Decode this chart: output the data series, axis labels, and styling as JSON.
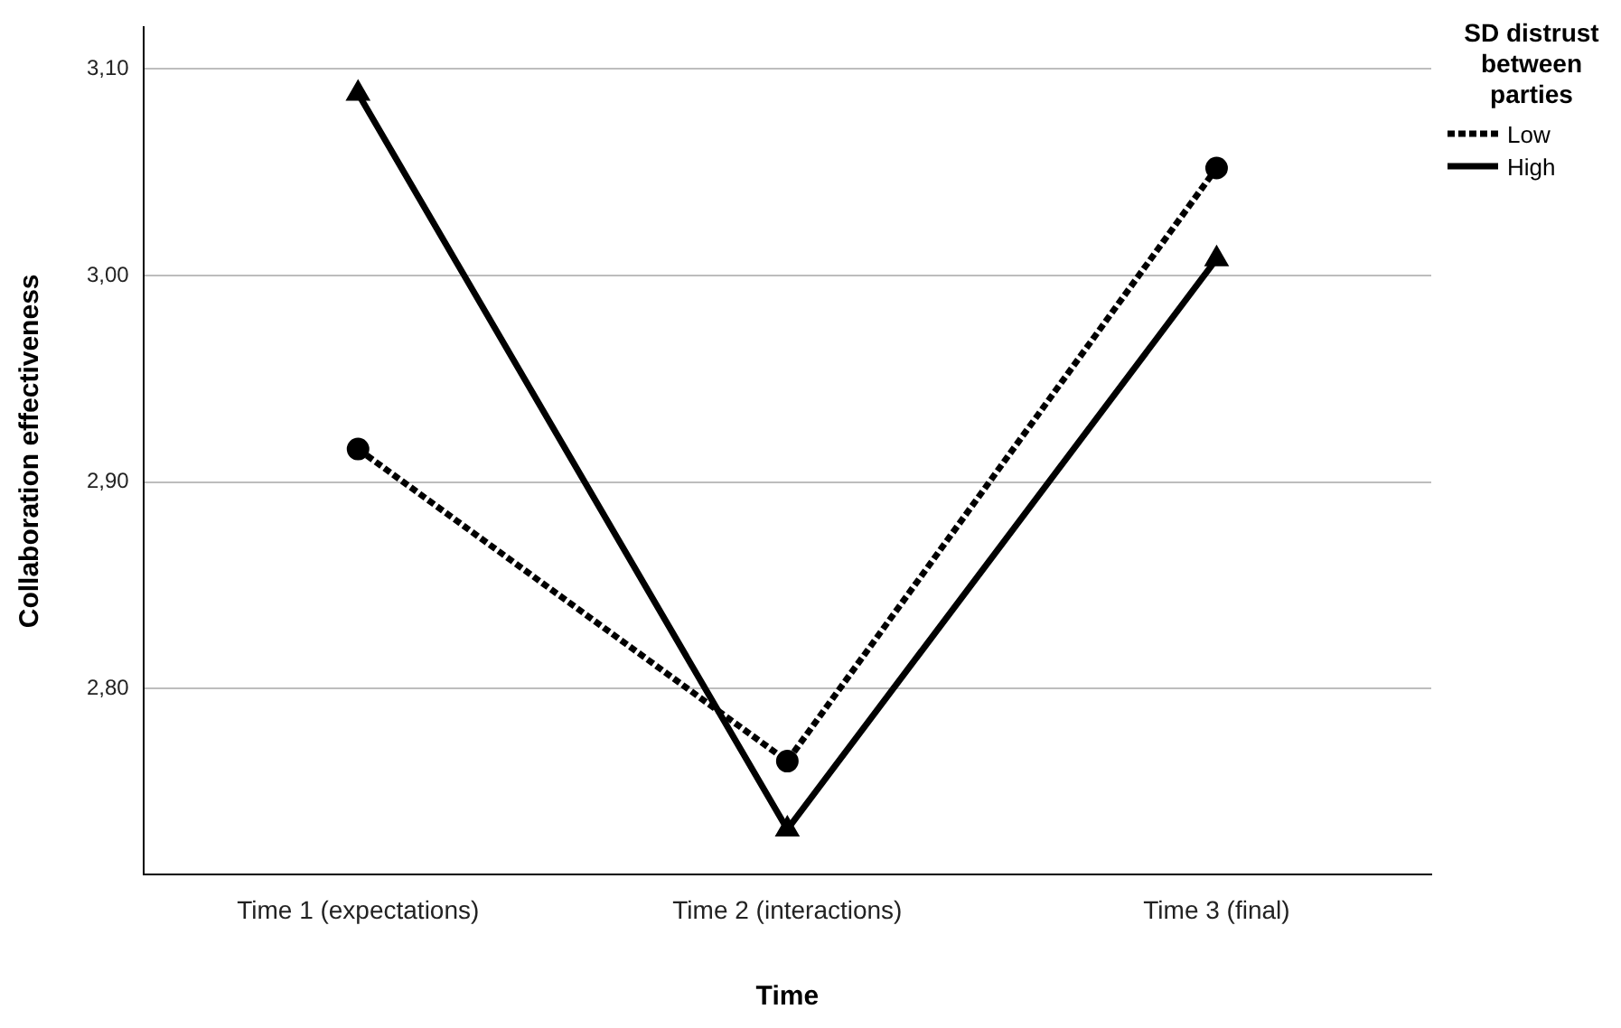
{
  "chart_data": {
    "type": "line",
    "xlabel": "Time",
    "ylabel": "Collaboration effectiveness",
    "legend_title": "SD distrust between parties",
    "legend": "top right",
    "grid": "y",
    "categories": [
      "Time 1 (expectations)",
      "Time 2 (interactions)",
      "Time 3 (final)"
    ],
    "ylim": [
      2.71,
      3.12
    ],
    "yticks": [
      {
        "value": 2.8,
        "label": "2,80"
      },
      {
        "value": 2.9,
        "label": "2,90"
      },
      {
        "value": 3.0,
        "label": "3,00"
      },
      {
        "value": 3.1,
        "label": "3,10"
      }
    ],
    "series": [
      {
        "name": "Low",
        "color": "#000000",
        "values": [
          2.916,
          2.765,
          3.052
        ],
        "marker": "circle",
        "line_style": "dotted"
      },
      {
        "name": "High",
        "color": "#000000",
        "values": [
          3.088,
          2.732,
          3.008
        ],
        "marker": "triangle",
        "line_style": "solid"
      }
    ]
  }
}
